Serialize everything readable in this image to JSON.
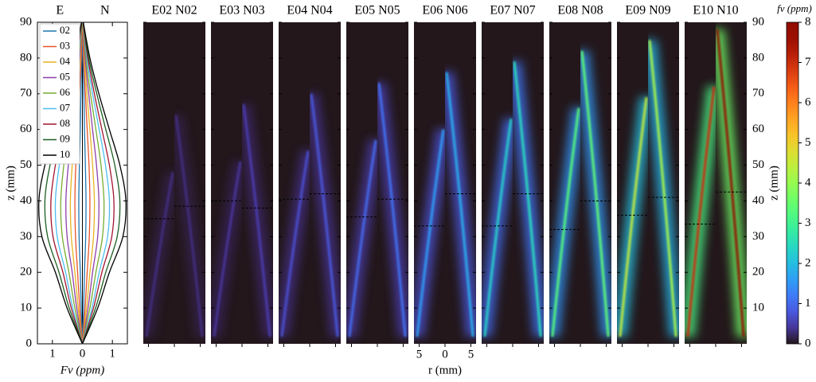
{
  "chart_data": [
    {
      "type": "line",
      "side_labels": [
        "E",
        "N"
      ],
      "xlabel": "Fv (ppm)",
      "ylabel": "z (mm)",
      "xlim": [
        -1.5,
        1.5
      ],
      "xticks": [
        {
          "value": -1,
          "label": "1"
        },
        0,
        1
      ],
      "ylim": [
        0,
        90
      ],
      "yticks": [
        0,
        10,
        20,
        30,
        40,
        50,
        60,
        70,
        80,
        90
      ],
      "z": [
        0,
        10,
        20,
        30,
        40,
        50,
        60,
        70,
        80,
        90
      ],
      "series": [
        {
          "name": "02",
          "color": "#1f77b4",
          "values_e": [
            0,
            0.04,
            0.07,
            0.11,
            0.12,
            0.1,
            0.07,
            0.05,
            0.02,
            0
          ],
          "values_n": [
            0,
            0.04,
            0.07,
            0.11,
            0.12,
            0.1,
            0.07,
            0.05,
            0.02,
            0
          ]
        },
        {
          "name": "03",
          "color": "#e8542a",
          "values_e": [
            0,
            0.09,
            0.16,
            0.23,
            0.25,
            0.22,
            0.16,
            0.1,
            0.04,
            0.01
          ],
          "values_n": [
            0,
            0.09,
            0.16,
            0.23,
            0.25,
            0.22,
            0.16,
            0.1,
            0.04,
            0.01
          ]
        },
        {
          "name": "04",
          "color": "#e6b422",
          "values_e": [
            0,
            0.14,
            0.25,
            0.37,
            0.4,
            0.34,
            0.25,
            0.15,
            0.07,
            0.01
          ],
          "values_n": [
            0,
            0.14,
            0.25,
            0.37,
            0.4,
            0.34,
            0.25,
            0.15,
            0.07,
            0.01
          ]
        },
        {
          "name": "05",
          "color": "#8e3fa8",
          "values_e": [
            0,
            0.19,
            0.34,
            0.51,
            0.55,
            0.47,
            0.34,
            0.21,
            0.09,
            0.01
          ],
          "values_n": [
            0,
            0.19,
            0.34,
            0.51,
            0.55,
            0.47,
            0.34,
            0.21,
            0.09,
            0.01
          ]
        },
        {
          "name": "06",
          "color": "#77ac30",
          "values_e": [
            0,
            0.25,
            0.45,
            0.67,
            0.72,
            0.62,
            0.45,
            0.27,
            0.12,
            0.01
          ],
          "values_n": [
            0,
            0.25,
            0.45,
            0.67,
            0.72,
            0.62,
            0.45,
            0.27,
            0.12,
            0.01
          ]
        },
        {
          "name": "07",
          "color": "#4dbeee",
          "values_e": [
            0,
            0.32,
            0.56,
            0.84,
            0.9,
            0.77,
            0.56,
            0.34,
            0.15,
            0.02
          ],
          "values_n": [
            0,
            0.32,
            0.56,
            0.84,
            0.9,
            0.77,
            0.56,
            0.34,
            0.15,
            0.02
          ]
        },
        {
          "name": "08",
          "color": "#a2142f",
          "values_e": [
            0,
            0.37,
            0.65,
            0.98,
            1.05,
            0.9,
            0.65,
            0.4,
            0.18,
            0.02
          ],
          "values_n": [
            0,
            0.37,
            0.65,
            0.98,
            1.05,
            0.9,
            0.65,
            0.4,
            0.18,
            0.02
          ]
        },
        {
          "name": "09",
          "color": "#1b5e20",
          "values_e": [
            0,
            0.44,
            0.78,
            1.16,
            1.25,
            1.08,
            0.78,
            0.48,
            0.21,
            0.03
          ],
          "values_n": [
            0,
            0.44,
            0.78,
            1.16,
            1.25,
            1.08,
            0.78,
            0.48,
            0.21,
            0.03
          ]
        },
        {
          "name": "10",
          "color": "#000000",
          "values_e": [
            0,
            0.51,
            0.9,
            1.35,
            1.45,
            1.25,
            0.9,
            0.55,
            0.25,
            0.03
          ],
          "values_n": [
            0,
            0.51,
            0.9,
            1.35,
            1.45,
            1.25,
            0.9,
            0.55,
            0.25,
            0.03
          ]
        }
      ]
    },
    {
      "type": "heatmap",
      "xlabel": "r (mm)",
      "ylabel": "z (mm)",
      "rlim": [
        -6,
        6
      ],
      "rticks": [
        {
          "value": -5,
          "label": "5"
        },
        0,
        5
      ],
      "ylim": [
        0,
        90
      ],
      "yticks": [
        10,
        20,
        30,
        40,
        50,
        60,
        70,
        80,
        90
      ],
      "panels": [
        {
          "title": "E02 N02",
          "peak_z": [
            35,
            38.5
          ],
          "peak_fv": [
            0.3,
            0.3
          ]
        },
        {
          "title": "E03 N03",
          "peak_z": [
            40,
            38
          ],
          "peak_fv": [
            0.4,
            0.5
          ]
        },
        {
          "title": "E04 N04",
          "peak_z": [
            40.5,
            42
          ],
          "peak_fv": [
            0.7,
            0.8
          ]
        },
        {
          "title": "E05 N05",
          "peak_z": [
            35.5,
            40.5
          ],
          "peak_fv": [
            1,
            1.1
          ]
        },
        {
          "title": "E06 N06",
          "peak_z": [
            33,
            42
          ],
          "peak_fv": [
            1.6,
            1.8
          ]
        },
        {
          "title": "E07 N07",
          "peak_z": [
            33,
            42
          ],
          "peak_fv": [
            2.3,
            2.5
          ]
        },
        {
          "title": "E08 N08",
          "peak_z": [
            32,
            40
          ],
          "peak_fv": [
            3.3,
            3.4
          ]
        },
        {
          "title": "E09 N09",
          "peak_z": [
            36,
            41
          ],
          "peak_fv": [
            4.5,
            4.2
          ]
        },
        {
          "title": "E10 N10",
          "peak_z": [
            33.5,
            42.5
          ],
          "peak_fv": [
            7,
            8
          ]
        }
      ]
    },
    {
      "type": "colorbar",
      "label": "fv (ppm)",
      "lim": [
        0,
        8
      ],
      "ticks": [
        0,
        1,
        2,
        3,
        4,
        5,
        6,
        7,
        8
      ]
    }
  ]
}
